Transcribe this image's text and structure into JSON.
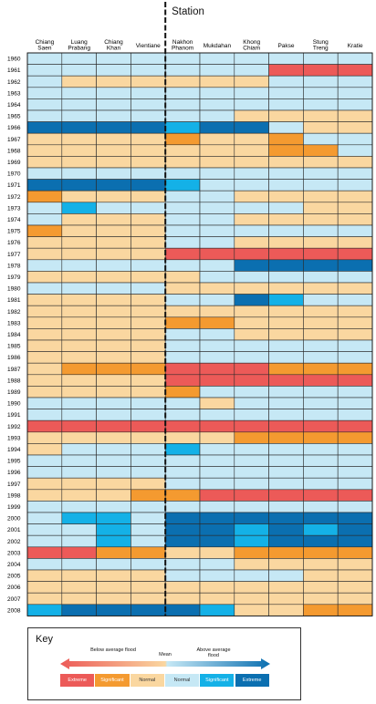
{
  "chart_data": {
    "type": "heatmap",
    "title": "Station",
    "stations": [
      "Chiang Saen",
      "Luang Prabang",
      "Chiang Khan",
      "Vientiane",
      "Nakhon Phanom",
      "Mukdahan",
      "Khong Chiam",
      "Pakse",
      "Stung Treng",
      "Kratie"
    ],
    "years": [
      "1960",
      "1961",
      "1962",
      "1963",
      "1964",
      "1965",
      "1966",
      "1967",
      "1968",
      "1969",
      "1970",
      "1971",
      "1972",
      "1973",
      "1974",
      "1975",
      "1976",
      "1977",
      "1978",
      "1979",
      "1980",
      "1981",
      "1982",
      "1983",
      "1984",
      "1985",
      "1986",
      "1987",
      "1988",
      "1989",
      "1990",
      "1991",
      "1992",
      "1993",
      "1994",
      "1995",
      "1996",
      "1997",
      "1998",
      "1999",
      "2000",
      "2001",
      "2002",
      "2003",
      "2004",
      "2005",
      "2006",
      "2007",
      "2008"
    ],
    "category_codes": {
      "E": "Extreme (below)",
      "S": "Significant (below)",
      "N": "Normal (below)",
      "n": "Normal (above)",
      "s": "Significant (above)",
      "e": "Extreme (above)"
    },
    "grid": [
      "nnnnnnnnnn",
      "nnnnnnnEEE",
      "nNNNNNNnnn",
      "nnnnnnnnnn",
      "nnnnnnnnnn",
      "nnnnnnNNNN",
      "eeeeseenNN",
      "NNNNSNNSnn",
      "NNNNNNNSSn",
      "NNNNNNNNNN",
      "nnnnnnnnnn",
      "eeeesnnnnn",
      "SNNNnnNNNN",
      "nsnnnnnnNN",
      "nNNNnnNNNN",
      "SNNNnnnnnn",
      "NNNNnnNNNN",
      "NNNNEEEEEE",
      "nnnnnneeee",
      "NNNNNnnnnn",
      "nnnnNNNNNN",
      "NNNNnnesnn",
      "NNNNNNNNNN",
      "NNNNSSNNNN",
      "NNNNnnNNNN",
      "NNNNnnnnnn",
      "NNNNnnnnnn",
      "NSSSEEESSS",
      "NNNNEEEEEE",
      "NNNNSnnnnn",
      "nnnnnNnnnn",
      "nnnnnnnnnn",
      "EEEEEEEEEE",
      "NNNNNNSSSS",
      "Nnnnsnnnnn",
      "nnnnnnnnnn",
      "nnnnnnnnnn",
      "NNNNnnnnnn",
      "NNNSSEEEEE",
      "nnnnnnnnnn",
      "nssneeeeee",
      "nnsneesese",
      "nnsneeseee",
      "EESSNNSSSS",
      "nnnnnnNNNN",
      "NNNNnnnnNN",
      "NNNNNNNNNN",
      "NNNNNNNNNN",
      "seeeesNNSS"
    ],
    "colors": {
      "E": "#ec5a58",
      "S": "#f49a30",
      "N": "#fad7a0",
      "n": "#c6e8f5",
      "s": "#14b1e7",
      "e": "#0b6fb0"
    },
    "key": {
      "title": "Key",
      "below_label": "Below average flood",
      "mean_label": "Mean",
      "above_label": "Above average flood",
      "categories": [
        {
          "code": "E",
          "label": "Extreme"
        },
        {
          "code": "S",
          "label": "Significant"
        },
        {
          "code": "N",
          "label": "Normal"
        },
        {
          "code": "n",
          "label": "Normal"
        },
        {
          "code": "s",
          "label": "Significant"
        },
        {
          "code": "e",
          "label": "Extreme"
        }
      ]
    }
  }
}
